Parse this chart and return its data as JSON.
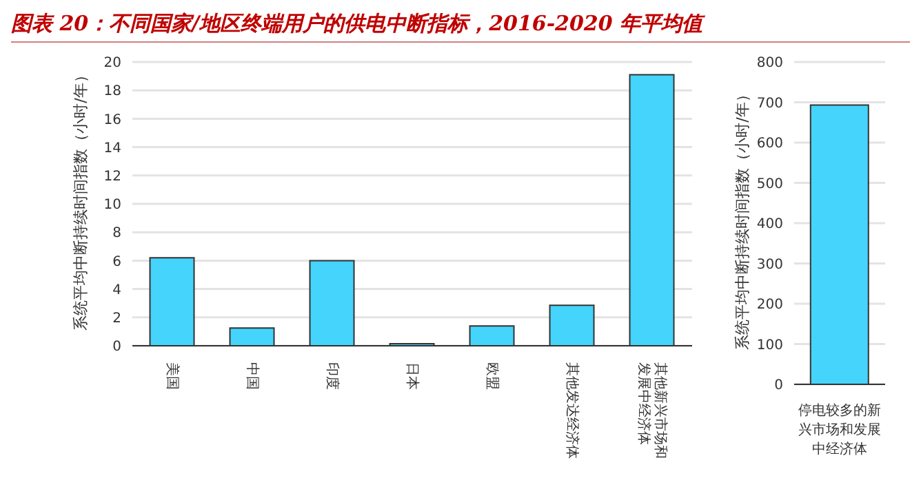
{
  "chart_data": [
    {
      "type": "bar",
      "title": "图表 20：不同国家/地区终端用户的供电中断指标，2016-2020 年平均值",
      "ylabel": "系统平均中断持续时间指数（小时/年）",
      "categories": [
        "美国",
        "中国",
        "印度",
        "日本",
        "欧盟",
        "其他发达经济体",
        "其他新兴市场和发展中经济体"
      ],
      "values": [
        6.2,
        1.25,
        6.0,
        0.15,
        1.4,
        2.85,
        19.1
      ],
      "color": "#45d4fb",
      "ylim": [
        0,
        20
      ],
      "yticks": [
        0,
        2,
        4,
        6,
        8,
        10,
        12,
        14,
        16,
        18,
        20
      ],
      "grid": "y"
    },
    {
      "type": "bar",
      "ylabel": "系统平均中断持续时间指数（小时/年）",
      "categories": [
        "停电较多的新兴市场和发展中经济体"
      ],
      "values": [
        693
      ],
      "color": "#45d4fb",
      "ylim": [
        0,
        800
      ],
      "yticks": [
        0,
        100,
        200,
        300,
        400,
        500,
        600,
        700,
        800
      ],
      "grid": "y"
    }
  ]
}
